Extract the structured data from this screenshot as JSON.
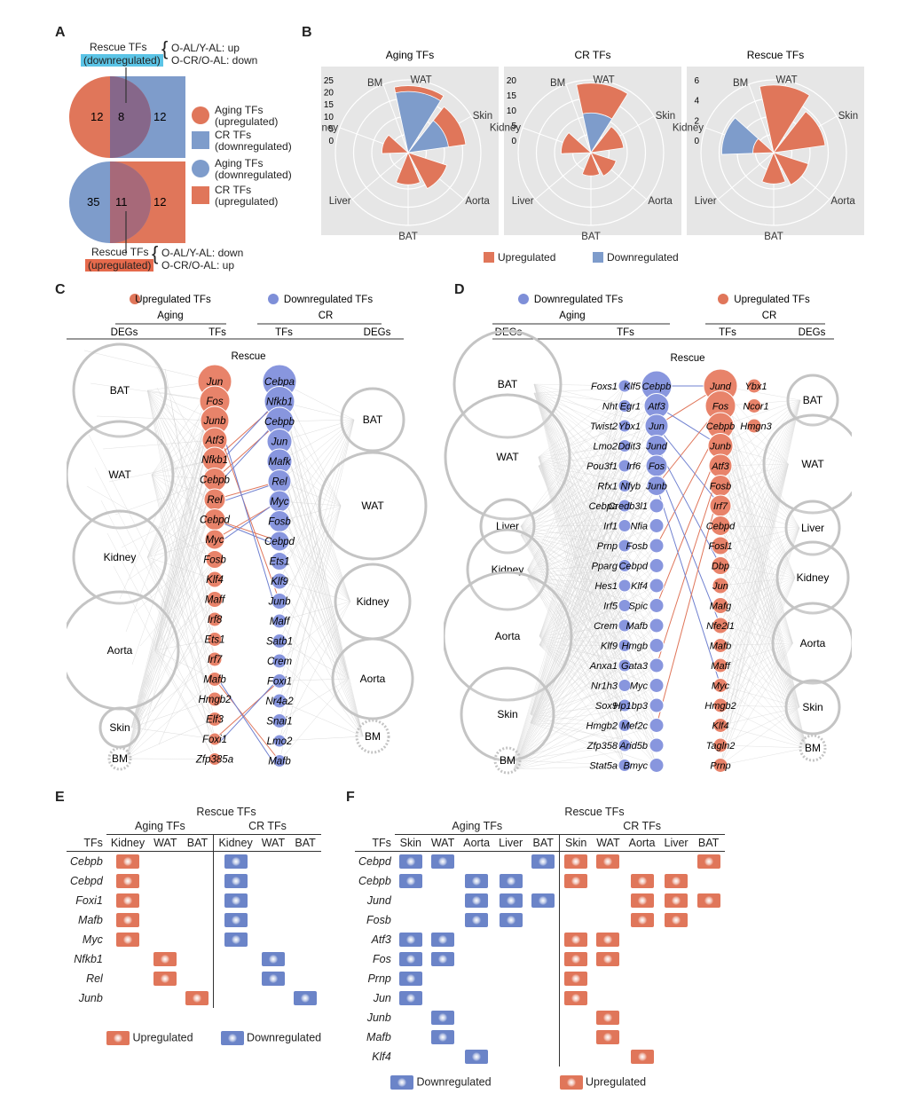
{
  "panels": {
    "A": "A",
    "B": "B",
    "C": "C",
    "D": "D",
    "E": "E",
    "F": "F"
  },
  "panel_a": {
    "top_tag": "Rescue TFs",
    "top_tag_sub": "(downregulated)",
    "top_note_1": "O-AL/Y-AL: up",
    "top_note_2": "O-CR/O-AL: down",
    "venn1": {
      "left": "12",
      "mid": "8",
      "right": "12"
    },
    "venn2": {
      "left": "35",
      "mid": "11",
      "right": "12"
    },
    "bottom_tag": "Rescue TFs",
    "bottom_tag_sub": "(upregulated)",
    "bottom_note_1": "O-AL/Y-AL: down",
    "bottom_note_2": "O-CR/O-AL: up",
    "legend": [
      {
        "shape": "circle",
        "color": "#e0765a",
        "l1": "Aging TFs",
        "l2": "(upregulated)"
      },
      {
        "shape": "square",
        "color": "#7e9ccb",
        "l1": "CR TFs",
        "l2": "(downregulated)"
      },
      {
        "shape": "circle",
        "color": "#7e9ccb",
        "l1": "Aging TFs",
        "l2": "(downregulated)"
      },
      {
        "shape": "square",
        "color": "#e0765a",
        "l1": "CR TFs",
        "l2": "(upregulated)"
      }
    ]
  },
  "panel_b": {
    "legend_up": "Upregulated",
    "legend_down": "Downregulated",
    "up_color": "#e0765a",
    "down_color": "#7e9ccb"
  },
  "chart_data": [
    {
      "type": "polar-bar",
      "title": "Aging TFs",
      "categories": [
        "WAT",
        "Skin",
        "Aorta",
        "BAT",
        "Liver",
        "Kidney",
        "BM"
      ],
      "ticks": [
        "25",
        "20",
        "15",
        "10",
        "5",
        "0"
      ],
      "rmax": 25,
      "series": [
        {
          "name": "Upregulated",
          "values": [
            23,
            20,
            14,
            11,
            0,
            9,
            0
          ]
        },
        {
          "name": "Downregulated",
          "values": [
            21,
            14,
            0,
            0,
            0,
            0,
            0
          ]
        }
      ]
    },
    {
      "type": "polar-bar",
      "title": "CR TFs",
      "categories": [
        "WAT",
        "Skin",
        "Aorta",
        "BAT",
        "Liver",
        "Kidney",
        "BM"
      ],
      "ticks": [
        "20",
        "15",
        "10",
        "5",
        "0"
      ],
      "rmax": 22,
      "series": [
        {
          "name": "Upregulated",
          "values": [
            21,
            10,
            8,
            7,
            0,
            9,
            0
          ]
        },
        {
          "name": "Downregulated",
          "values": [
            12,
            0,
            0,
            0,
            0,
            0,
            0
          ]
        }
      ]
    },
    {
      "type": "polar-bar",
      "title": "Rescue TFs",
      "categories": [
        "WAT",
        "Skin",
        "Aorta",
        "BAT",
        "Liver",
        "Kidney",
        "BM"
      ],
      "ticks": [
        "6",
        "4",
        "2",
        "0"
      ],
      "rmax": 7,
      "series": [
        {
          "name": "Upregulated",
          "values": [
            6.5,
            5,
            3.5,
            3,
            0,
            2,
            0
          ]
        },
        {
          "name": "Downregulated",
          "values": [
            0,
            0,
            0,
            0,
            0,
            5,
            0
          ]
        }
      ]
    }
  ],
  "panel_c": {
    "legend_up": "Upregulated TFs",
    "legend_down": "Downregulated TFs",
    "group_left": "Aging",
    "group_right": "CR",
    "col_degs_left": "DEGs",
    "col_tfs_left": "TFs",
    "col_tfs_right": "TFs",
    "col_degs_right": "DEGs",
    "rescue": "Rescue",
    "left_tissues": [
      "BAT",
      "WAT",
      "Kidney",
      "Aorta",
      "Skin",
      "BM"
    ],
    "right_tissues": [
      "BAT",
      "WAT",
      "Kidney",
      "Aorta",
      "BM"
    ],
    "aging_tfs": [
      "Jun",
      "Fos",
      "Junb",
      "Atf3",
      "Nfkb1",
      "Cebpb",
      "Rel",
      "Cebpd",
      "Myc",
      "Fosb",
      "Klf4",
      "Maff",
      "Irf8",
      "Ets1",
      "Irf7",
      "Mafb",
      "Hmgb2",
      "Elf3",
      "Foxi1",
      "Zfp385a"
    ],
    "cr_tfs": [
      "Cebpa",
      "Nfkb1",
      "Cebpb",
      "Jun",
      "Mafk",
      "Rel",
      "Myc",
      "Fosb",
      "Cebpd",
      "Ets1",
      "Klf9",
      "Junb",
      "Maff",
      "Satb1",
      "Crem",
      "Foxi1",
      "Nr4a2",
      "Snai1",
      "Lmo2",
      "Mafb"
    ]
  },
  "panel_d": {
    "legend_down": "Downregulated TFs",
    "legend_up": "Upregulated TFs",
    "group_left": "Aging",
    "group_right": "CR",
    "col_degs_left": "DEGs",
    "col_tfs_left": "TFs",
    "col_tfs_right": "TFs",
    "col_degs_right": "DEGs",
    "rescue": "Rescue",
    "left_tissues": [
      "BAT",
      "WAT",
      "Liver",
      "Kidney",
      "Aorta",
      "Skin",
      "BM"
    ],
    "right_tissues": [
      "BAT",
      "WAT",
      "Liver",
      "Kidney",
      "Aorta",
      "Skin",
      "BM"
    ],
    "aging_col1": [
      "Foxs1",
      "Nht",
      "Twist2",
      "Lmo2",
      "Pou3f1",
      "Rfx1",
      "Cebpa",
      "Irf1",
      "Prnp",
      "Pparg",
      "Hes1",
      "Irf5",
      "Crem",
      "Klf9",
      "Anxa1",
      "Nr1h3",
      "Sox9",
      "Hmgb2",
      "Zfp358",
      "Stat5a"
    ],
    "aging_col2": [
      "Klf5",
      "Egr1",
      "Ybx1",
      "Ddit3",
      "Irf6",
      "Nfyb",
      "Credb3l1",
      "Nfia",
      "Fosb",
      "Cebpd",
      "Klf4",
      "Spic",
      "Mafb",
      "Hmgb",
      "Gata3",
      "Myc",
      "Hp1bp3",
      "Mef2c",
      "Arid5b",
      "Bmyc"
    ],
    "aging_rescue": [
      "Cebpb",
      "Atf3",
      "Jun",
      "Jund",
      "Fos",
      "Junb"
    ],
    "cr_rescue": [
      "Jund",
      "Fos",
      "Cebpb",
      "Junb",
      "Atf3",
      "Fosb",
      "Irf7",
      "Cebpd",
      "Fosl1",
      "Dbp",
      "Jun",
      "Mafg",
      "Nfe2l1",
      "Mafb",
      "Maff",
      "Myc",
      "Hmgb2",
      "Klf4",
      "Tagln2",
      "Prnp"
    ],
    "cr_extra": [
      "Ybx1",
      "Ncor1",
      "Hmgn3"
    ]
  },
  "panel_e": {
    "header": "Rescue TFs",
    "group_aging": "Aging TFs",
    "group_cr": "CR TFs",
    "tfs_label": "TFs",
    "cols": [
      "Kidney",
      "WAT",
      "BAT",
      "Kidney",
      "WAT",
      "BAT"
    ],
    "rows": [
      {
        "tf": "Cebpb",
        "cells": [
          "up",
          "",
          "",
          "down",
          "",
          ""
        ]
      },
      {
        "tf": "Cebpd",
        "cells": [
          "up",
          "",
          "",
          "down",
          "",
          ""
        ]
      },
      {
        "tf": "Foxi1",
        "cells": [
          "up",
          "",
          "",
          "down",
          "",
          ""
        ]
      },
      {
        "tf": "Mafb",
        "cells": [
          "up",
          "",
          "",
          "down",
          "",
          ""
        ]
      },
      {
        "tf": "Myc",
        "cells": [
          "up",
          "",
          "",
          "down",
          "",
          ""
        ]
      },
      {
        "tf": "Nfkb1",
        "cells": [
          "",
          "up",
          "",
          "",
          "down",
          ""
        ]
      },
      {
        "tf": "Rel",
        "cells": [
          "",
          "up",
          "",
          "",
          "down",
          ""
        ]
      },
      {
        "tf": "Junb",
        "cells": [
          "",
          "",
          "up",
          "",
          "",
          "down"
        ]
      }
    ],
    "legend_up": "Upregulated",
    "legend_down": "Downregulated"
  },
  "panel_f": {
    "header": "Rescue TFs",
    "group_aging": "Aging TFs",
    "group_cr": "CR TFs",
    "tfs_label": "TFs",
    "cols": [
      "Skin",
      "WAT",
      "Aorta",
      "Liver",
      "BAT",
      "Skin",
      "WAT",
      "Aorta",
      "Liver",
      "BAT"
    ],
    "rows": [
      {
        "tf": "Cebpd",
        "cells": [
          "down",
          "down",
          "",
          "",
          "down",
          "up",
          "up",
          "",
          "",
          "up"
        ]
      },
      {
        "tf": "Cebpb",
        "cells": [
          "down",
          "",
          "down",
          "down",
          "",
          "up",
          "",
          "up",
          "up",
          ""
        ]
      },
      {
        "tf": "Jund",
        "cells": [
          "",
          "",
          "down",
          "down",
          "down",
          "",
          "",
          "up",
          "up",
          "up"
        ]
      },
      {
        "tf": "Fosb",
        "cells": [
          "",
          "",
          "down",
          "down",
          "",
          "",
          "",
          "up",
          "up",
          ""
        ]
      },
      {
        "tf": "Atf3",
        "cells": [
          "down",
          "down",
          "",
          "",
          "",
          "up",
          "up",
          "",
          "",
          ""
        ]
      },
      {
        "tf": "Fos",
        "cells": [
          "down",
          "down",
          "",
          "",
          "",
          "up",
          "up",
          "",
          "",
          ""
        ]
      },
      {
        "tf": "Prnp",
        "cells": [
          "down",
          "",
          "",
          "",
          "",
          "up",
          "",
          "",
          "",
          ""
        ]
      },
      {
        "tf": "Jun",
        "cells": [
          "down",
          "",
          "",
          "",
          "",
          "up",
          "",
          "",
          "",
          ""
        ]
      },
      {
        "tf": "Junb",
        "cells": [
          "",
          "down",
          "",
          "",
          "",
          "",
          "up",
          "",
          "",
          ""
        ]
      },
      {
        "tf": "Mafb",
        "cells": [
          "",
          "down",
          "",
          "",
          "",
          "",
          "up",
          "",
          "",
          ""
        ]
      },
      {
        "tf": "Klf4",
        "cells": [
          "",
          "",
          "down",
          "",
          "",
          "",
          "",
          "up",
          "",
          ""
        ]
      }
    ],
    "legend_down": "Downregulated",
    "legend_up": "Upregulated"
  }
}
